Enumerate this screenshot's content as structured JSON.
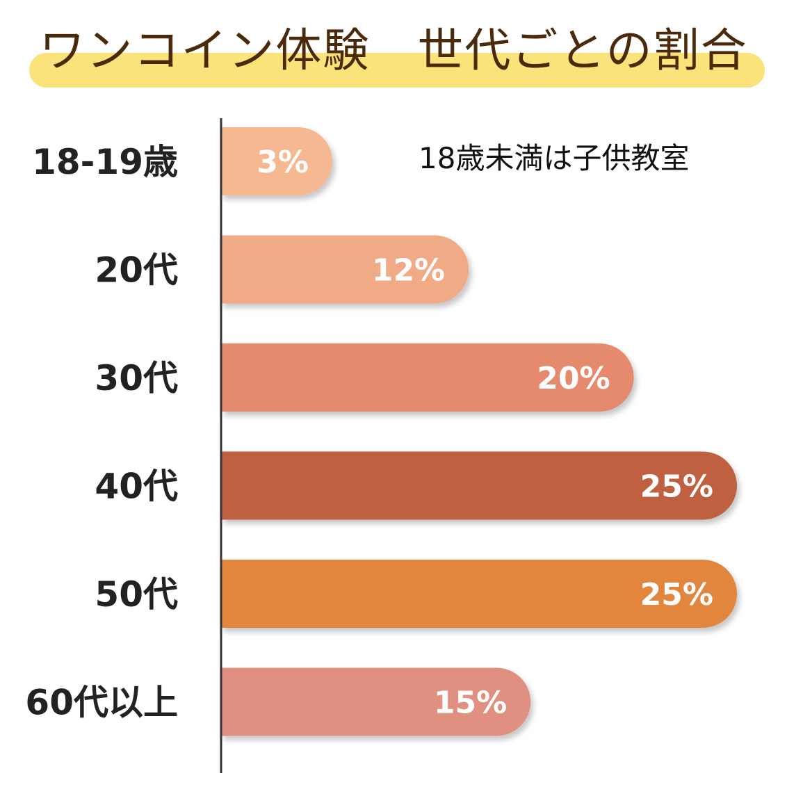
{
  "title": "ワンコイン体験　世代ごとの割合",
  "note": "18歳未満は子供教室",
  "chart_data": {
    "type": "bar",
    "orientation": "horizontal",
    "categories": [
      "18-19歳",
      "20代",
      "30代",
      "40代",
      "50代",
      "60代以上"
    ],
    "values": [
      3,
      12,
      20,
      25,
      25,
      15
    ],
    "value_labels": [
      "3%",
      "12%",
      "20%",
      "25%",
      "25%",
      "15%"
    ],
    "colors": [
      "#f5b890",
      "#f1aa86",
      "#e58a6c",
      "#bf6040",
      "#e2853c",
      "#e09080"
    ],
    "xlim": [
      0,
      25
    ],
    "grid": false,
    "legend": "none"
  }
}
